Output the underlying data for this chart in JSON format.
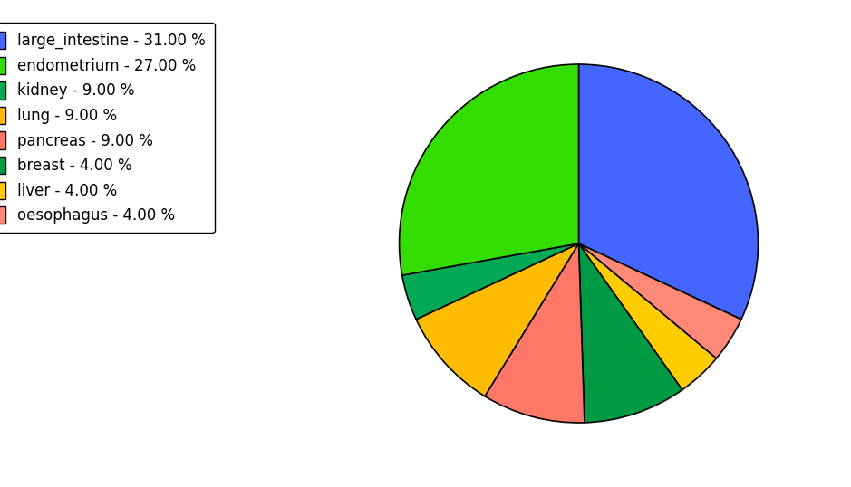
{
  "labels": [
    "large_intestine",
    "endometrium",
    "kidney",
    "lung",
    "pancreas",
    "breast",
    "liver",
    "oesophagus"
  ],
  "values": [
    31.0,
    27.0,
    9.0,
    9.0,
    9.0,
    4.0,
    4.0,
    4.0
  ],
  "colors": [
    "#4466ff",
    "#33dd00",
    "#00aa55",
    "#ffbb00",
    "#ff7766",
    "#009944",
    "#ffcc00",
    "#ff8877"
  ],
  "legend_labels": [
    "large_intestine - 31.00 %",
    "endometrium - 27.00 %",
    "kidney - 9.00 %",
    "lung - 9.00 %",
    "pancreas - 9.00 %",
    "breast - 4.00 %",
    "liver - 4.00 %",
    "oesophagus - 4.00 %"
  ],
  "startangle": 90,
  "figsize": [
    9.39,
    5.38
  ],
  "dpi": 100,
  "background_color": "#ffffff",
  "legend_fontsize": 12
}
